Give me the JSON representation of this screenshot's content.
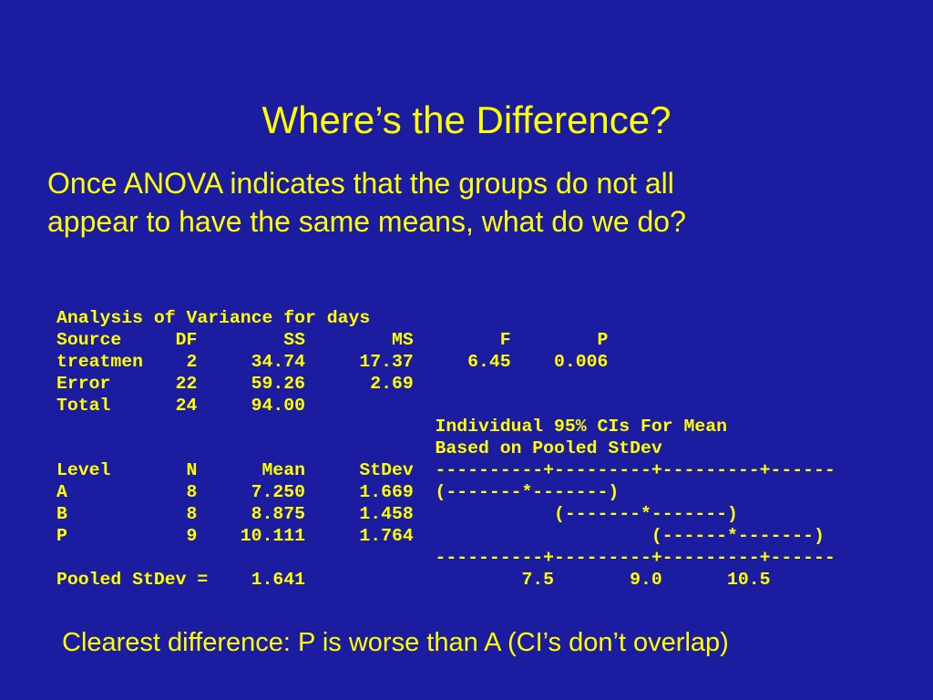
{
  "title": "Where’s the Difference?",
  "intro": [
    "Once ANOVA indicates that the groups do not all",
    "appear to have the same means, what do we do?"
  ],
  "output": {
    "lines": [
      "Analysis of Variance for days",
      "Source     DF        SS        MS        F        P",
      "treatmen    2     34.74     17.37     6.45    0.006",
      "Error      22     59.26      2.69",
      "Total      24     94.00",
      "                                   Individual 95% CIs For Mean",
      "                                   Based on Pooled StDev",
      "Level       N      Mean     StDev  ----------+---------+---------+------",
      "A           8     7.250     1.669  (-------*-------)",
      "B           8     8.875     1.458             (-------*-------)",
      "P           9    10.111     1.764                      (------*-------)",
      "                                   ----------+---------+---------+------",
      "Pooled StDev =    1.641                    7.5       9.0      10.5"
    ]
  },
  "conclusion": "Clearest difference:  P is worse than A (CI’s don’t overlap)"
}
